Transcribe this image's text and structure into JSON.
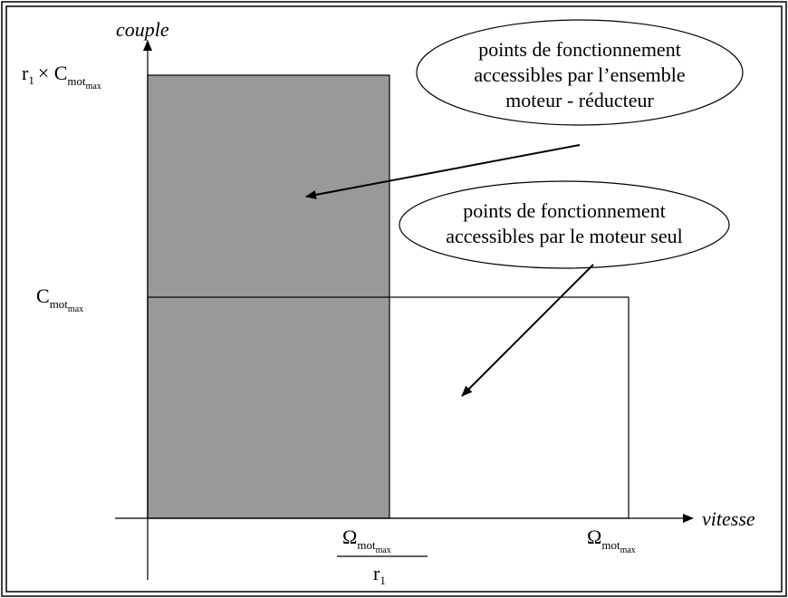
{
  "axes": {
    "y_label": "couple",
    "x_label": "vitesse"
  },
  "y_top": [
    "r",
    "1",
    "× C",
    "mot",
    "max"
  ],
  "y_mid": [
    "C",
    "mot",
    "max"
  ],
  "x_mid_num": [
    "Ω",
    "mot",
    "max"
  ],
  "x_mid_den": [
    "r",
    "1"
  ],
  "x_right": [
    "Ω",
    "mot",
    "max"
  ],
  "callouts": [
    {
      "lines": [
        "points de fonctionnement",
        "accessibles par l’ensemble",
        "moteur - réducteur"
      ]
    },
    {
      "lines": [
        "points de fonctionnement",
        "accessibles par le moteur seul"
      ]
    }
  ]
}
